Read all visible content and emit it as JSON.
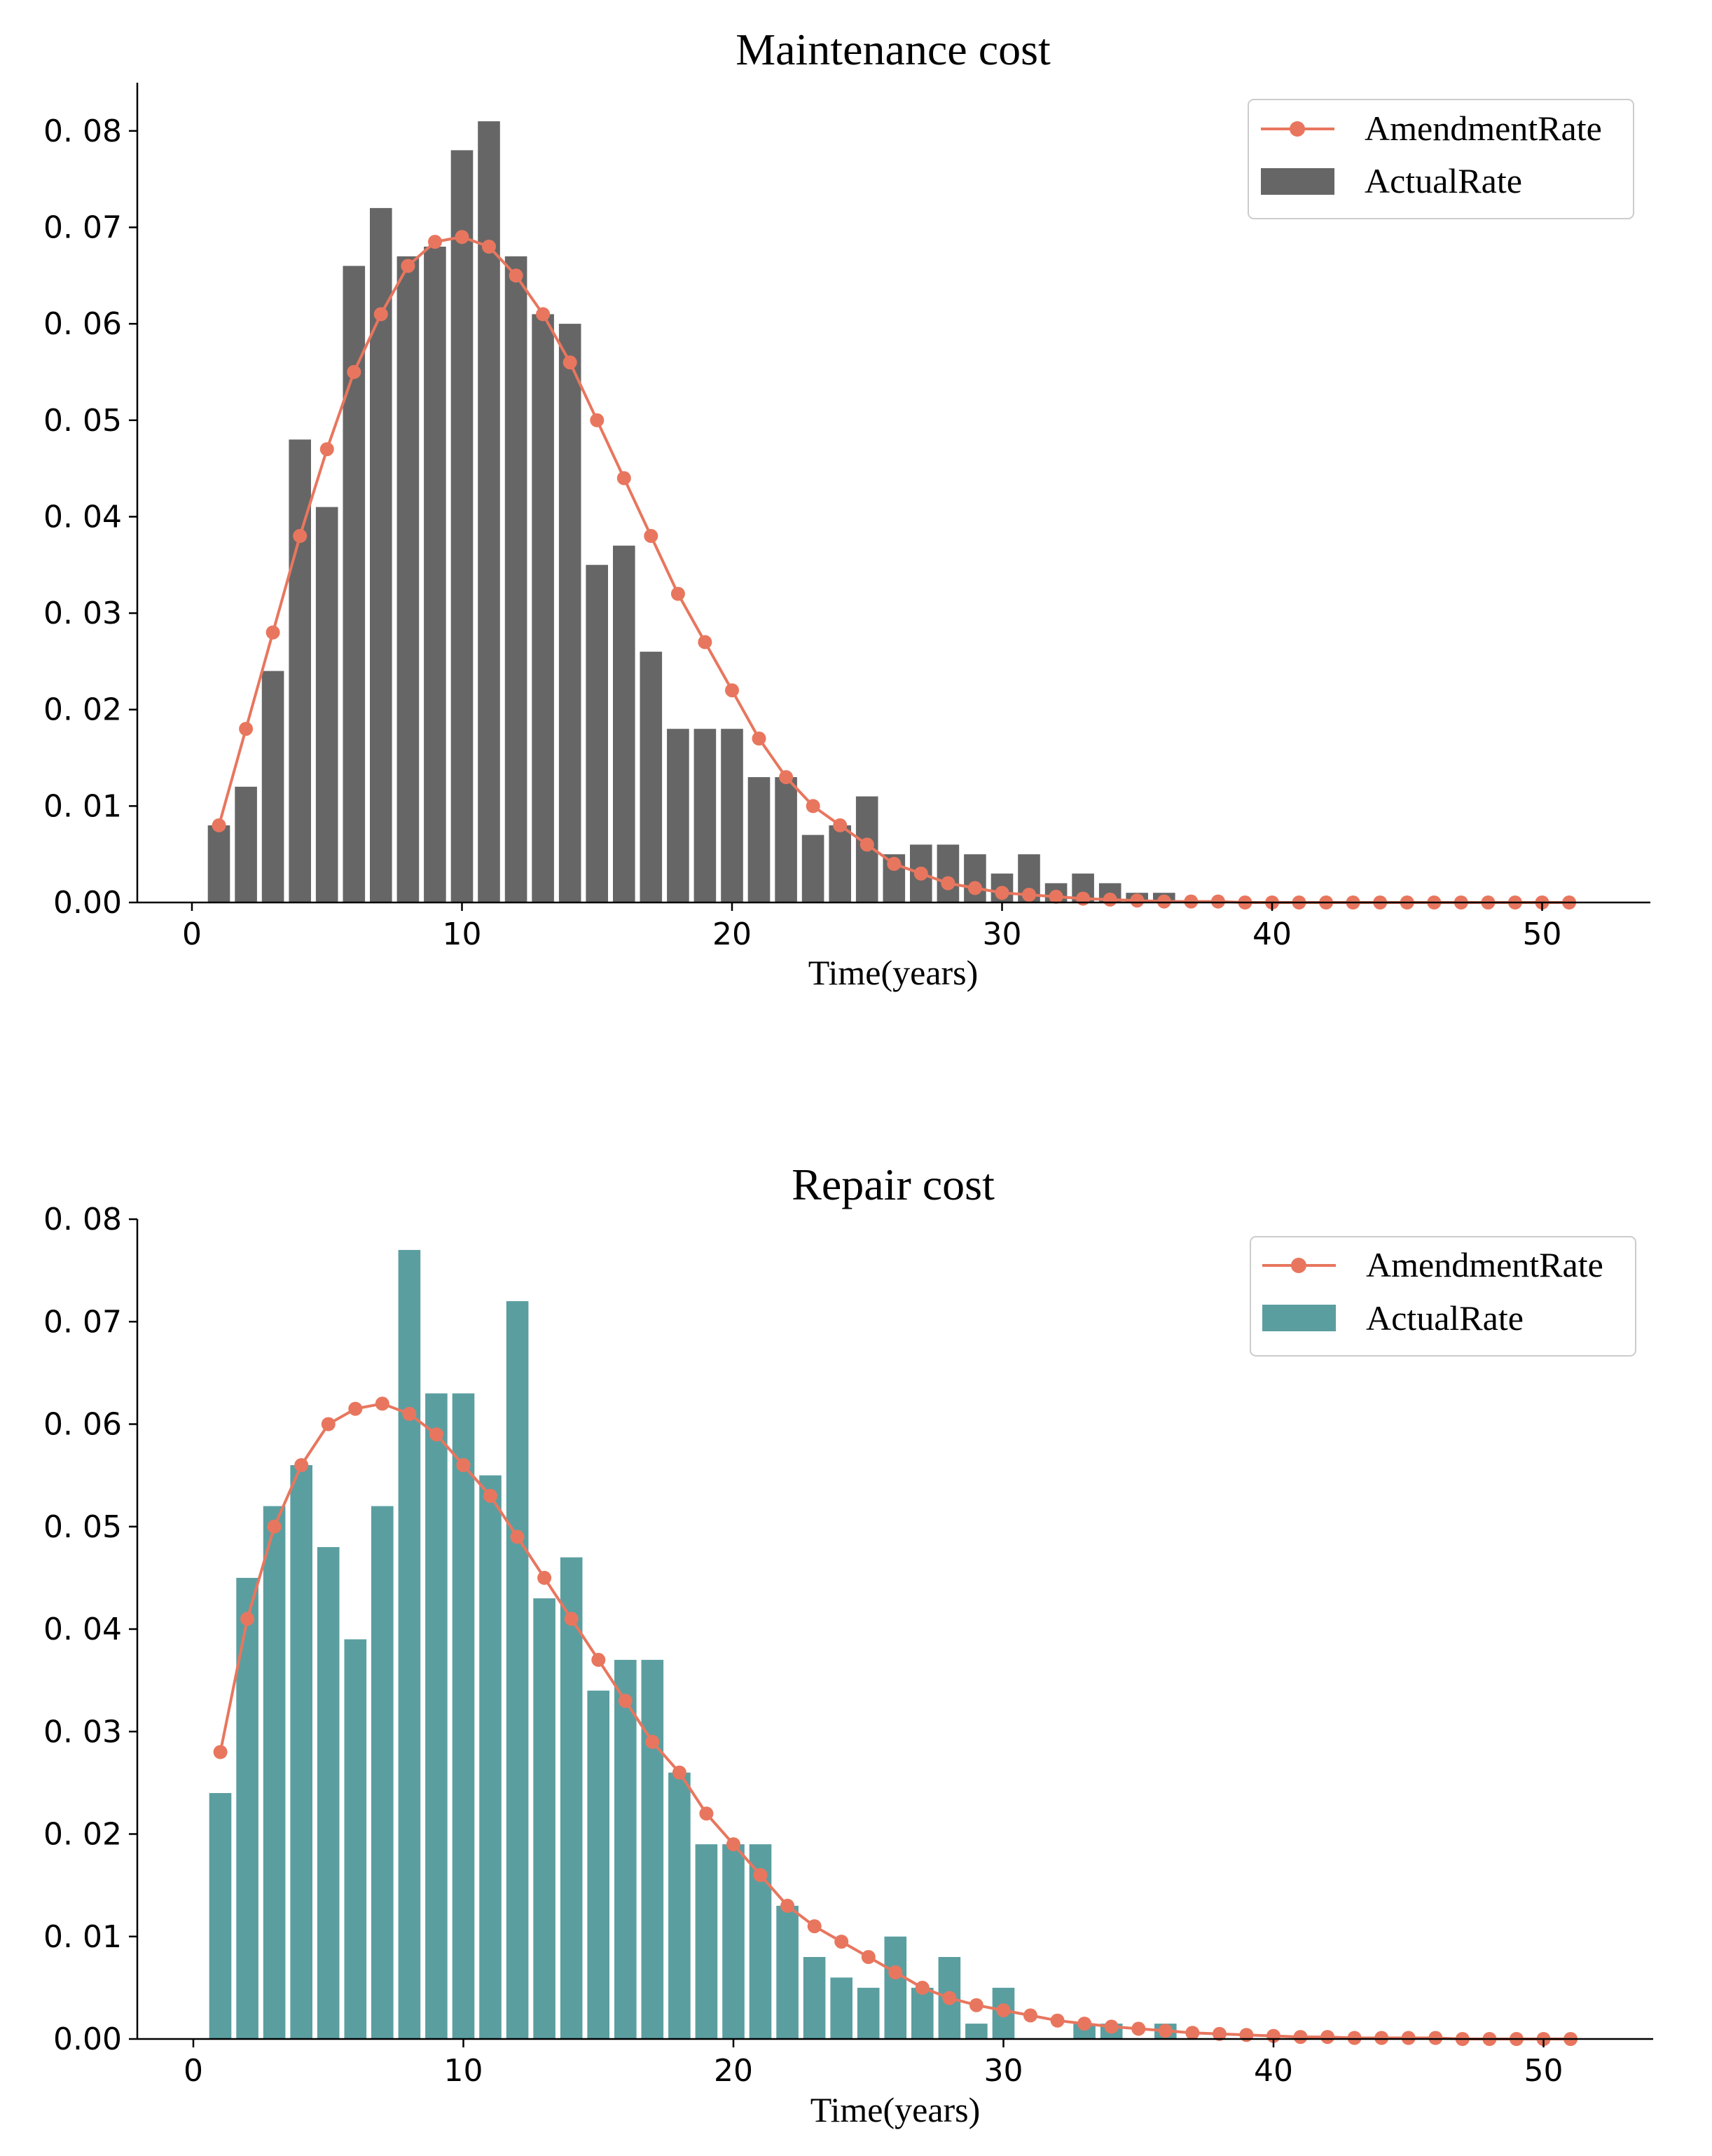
{
  "colors": {
    "amendment": "#E8765E",
    "maintenance_bar": "#666666",
    "repair_bar": "#5B9EA0"
  },
  "chart_data": [
    {
      "type": "bar",
      "title": "Maintenance cost",
      "xlabel": "Time(years)",
      "ylabel": "",
      "xlim": [
        -2,
        54
      ],
      "ylim": [
        0,
        0.085
      ],
      "xticks": [
        0,
        10,
        20,
        30,
        40,
        50
      ],
      "yticks": [
        0.0,
        0.01,
        0.02,
        0.03,
        0.04,
        0.05,
        0.06,
        0.07,
        0.08
      ],
      "ytick_labels": [
        "0.00",
        "0. 01",
        "0. 02",
        "0. 03",
        "0. 04",
        "0. 05",
        "0. 06",
        "0. 07",
        "0. 08"
      ],
      "legend": {
        "placement": "top-right",
        "entries": [
          "AmendmentRate",
          "ActualRate"
        ]
      },
      "bar_color": "maintenance_bar",
      "bars": {
        "name": "ActualRate",
        "x": [
          1,
          2,
          3,
          4,
          5,
          6,
          7,
          8,
          9,
          10,
          11,
          12,
          13,
          14,
          15,
          16,
          17,
          18,
          19,
          20,
          21,
          22,
          23,
          24,
          25,
          26,
          27,
          28,
          29,
          30,
          31,
          32,
          33,
          34,
          35,
          36
        ],
        "values": [
          0.008,
          0.012,
          0.024,
          0.048,
          0.041,
          0.066,
          0.072,
          0.067,
          0.068,
          0.078,
          0.081,
          0.067,
          0.061,
          0.06,
          0.035,
          0.037,
          0.026,
          0.018,
          0.018,
          0.018,
          0.013,
          0.013,
          0.007,
          0.008,
          0.011,
          0.005,
          0.006,
          0.006,
          0.005,
          0.003,
          0.005,
          0.002,
          0.003,
          0.002,
          0.001,
          0.001
        ]
      },
      "line": {
        "name": "AmendmentRate",
        "x": [
          1,
          2,
          3,
          4,
          5,
          6,
          7,
          8,
          9,
          10,
          11,
          12,
          13,
          14,
          15,
          16,
          17,
          18,
          19,
          20,
          21,
          22,
          23,
          24,
          25,
          26,
          27,
          28,
          29,
          30,
          31,
          32,
          33,
          34,
          35,
          36,
          37,
          38,
          39,
          40,
          41,
          42,
          43,
          44,
          45,
          46,
          47,
          48,
          49,
          50,
          51
        ],
        "values": [
          0.008,
          0.018,
          0.028,
          0.038,
          0.047,
          0.055,
          0.061,
          0.066,
          0.0685,
          0.069,
          0.068,
          0.065,
          0.061,
          0.056,
          0.05,
          0.044,
          0.038,
          0.032,
          0.027,
          0.022,
          0.017,
          0.013,
          0.01,
          0.008,
          0.006,
          0.004,
          0.003,
          0.002,
          0.0015,
          0.001,
          0.0008,
          0.0006,
          0.0004,
          0.0003,
          0.0002,
          0.0001,
          0.0001,
          0.0001,
          0,
          0,
          0,
          0,
          0,
          0,
          0,
          0,
          0,
          0,
          0,
          0,
          0
        ]
      }
    },
    {
      "type": "bar",
      "title": "Repair cost",
      "xlabel": "Time(years)",
      "ylabel": "",
      "xlim": [
        -2,
        54
      ],
      "ylim": [
        0,
        0.08
      ],
      "xticks": [
        0,
        10,
        20,
        30,
        40,
        50
      ],
      "yticks": [
        0.0,
        0.01,
        0.02,
        0.03,
        0.04,
        0.05,
        0.06,
        0.07,
        0.08
      ],
      "ytick_labels": [
        "0.00",
        "0. 01",
        "0. 02",
        "0. 03",
        "0. 04",
        "0. 05",
        "0. 06",
        "0. 07",
        "0. 08"
      ],
      "legend": {
        "placement": "top-right",
        "entries": [
          "AmendmentRate",
          "ActualRate"
        ]
      },
      "bar_color": "repair_bar",
      "bars": {
        "name": "ActualRate",
        "x": [
          1,
          2,
          3,
          4,
          5,
          6,
          7,
          8,
          9,
          10,
          11,
          12,
          13,
          14,
          15,
          16,
          17,
          18,
          19,
          20,
          21,
          22,
          23,
          24,
          25,
          26,
          27,
          28,
          29,
          30,
          31,
          32,
          33,
          34,
          35,
          36
        ],
        "values": [
          0.024,
          0.045,
          0.052,
          0.056,
          0.048,
          0.039,
          0.052,
          0.077,
          0.063,
          0.063,
          0.055,
          0.072,
          0.043,
          0.047,
          0.034,
          0.037,
          0.037,
          0.026,
          0.019,
          0.019,
          0.019,
          0.013,
          0.008,
          0.006,
          0.005,
          0.01,
          0.005,
          0.008,
          0.0015,
          0.005,
          0,
          0,
          0.0015,
          0.0015,
          0,
          0.0015
        ]
      },
      "line": {
        "name": "AmendmentRate",
        "x": [
          1,
          2,
          3,
          4,
          5,
          6,
          7,
          8,
          9,
          10,
          11,
          12,
          13,
          14,
          15,
          16,
          17,
          18,
          19,
          20,
          21,
          22,
          23,
          24,
          25,
          26,
          27,
          28,
          29,
          30,
          31,
          32,
          33,
          34,
          35,
          36,
          37,
          38,
          39,
          40,
          41,
          42,
          43,
          44,
          45,
          46,
          47,
          48,
          49,
          50,
          51
        ],
        "values": [
          0.028,
          0.041,
          0.05,
          0.056,
          0.06,
          0.0615,
          0.062,
          0.061,
          0.059,
          0.056,
          0.053,
          0.049,
          0.045,
          0.041,
          0.037,
          0.033,
          0.029,
          0.026,
          0.022,
          0.019,
          0.016,
          0.013,
          0.011,
          0.0095,
          0.008,
          0.0065,
          0.005,
          0.004,
          0.0033,
          0.0028,
          0.0023,
          0.0018,
          0.0015,
          0.0012,
          0.001,
          0.0008,
          0.0006,
          0.0005,
          0.0004,
          0.0003,
          0.0002,
          0.0002,
          0.0001,
          0.0001,
          0.0001,
          0.0001,
          0,
          0,
          0,
          0,
          0
        ]
      }
    }
  ]
}
